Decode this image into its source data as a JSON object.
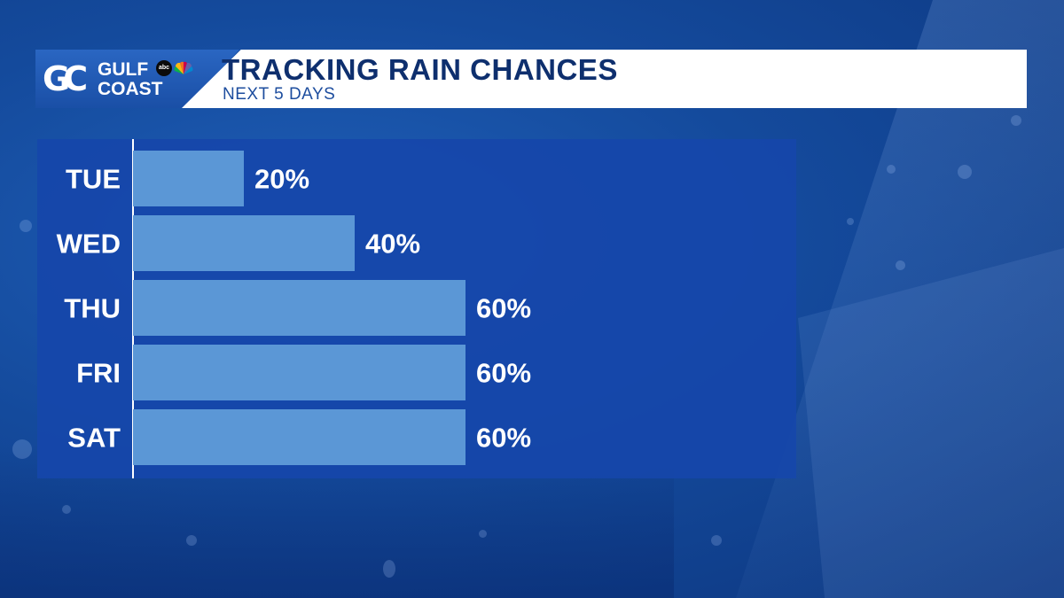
{
  "header": {
    "logo_mark": "GC",
    "logo_line1": "GULF",
    "logo_line2": "COAST",
    "network_badge": "abc",
    "title": "TRACKING RAIN CHANCES",
    "subtitle": "NEXT 5 DAYS"
  },
  "colors": {
    "bar": "#5b97d6",
    "panel": "#1646aa",
    "title_text": "#0e2f6e",
    "accent": "#1d4d9e"
  },
  "chart_data": {
    "type": "bar",
    "orientation": "horizontal",
    "categories": [
      "TUE",
      "WED",
      "THU",
      "FRI",
      "SAT"
    ],
    "values": [
      20,
      40,
      60,
      60,
      60
    ],
    "value_labels": [
      "20%",
      "40%",
      "60%",
      "60%",
      "60%"
    ],
    "title": "TRACKING RAIN CHANCES",
    "subtitle": "NEXT 5 DAYS",
    "unit": "%",
    "xlim": [
      0,
      100
    ],
    "grid": false,
    "legend": "none"
  }
}
